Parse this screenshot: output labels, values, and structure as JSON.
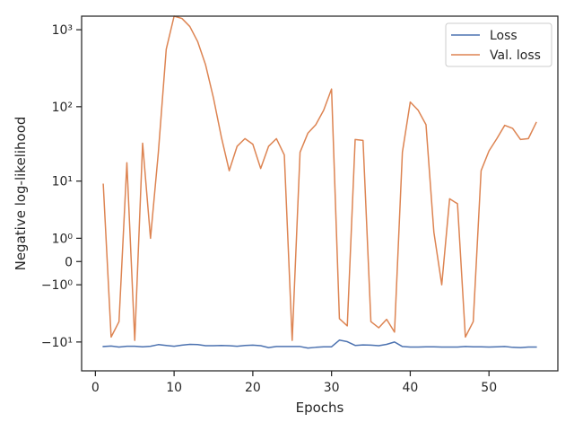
{
  "chart_data": {
    "type": "line",
    "title": "",
    "xlabel": "Epochs",
    "ylabel": "Negative log-likelihood",
    "yscale": "symlog",
    "xlim": [
      -1.75,
      58.75
    ],
    "ylim": [
      -25,
      1500
    ],
    "grid": false,
    "legend_position": "top-right",
    "x_ticks": [
      0,
      10,
      20,
      30,
      40,
      50
    ],
    "x_tick_labels": [
      "0",
      "10",
      "20",
      "30",
      "40",
      "50"
    ],
    "y_ticks": [
      -10,
      -1,
      0,
      1,
      10,
      100,
      1000
    ],
    "y_tick_labels": [
      "−10¹",
      "−10⁰",
      "0",
      "10⁰",
      "10¹",
      "10²",
      "10³"
    ],
    "series": [
      {
        "name": "Loss",
        "color": "#4c72b0",
        "x": [
          1,
          2,
          3,
          4,
          5,
          6,
          7,
          8,
          9,
          10,
          11,
          12,
          13,
          14,
          15,
          16,
          17,
          18,
          19,
          20,
          21,
          22,
          23,
          24,
          25,
          26,
          27,
          28,
          29,
          30,
          31,
          32,
          33,
          34,
          35,
          36,
          37,
          38,
          39,
          40,
          41,
          42,
          43,
          44,
          45,
          46,
          47,
          48,
          49,
          50,
          51,
          52,
          53,
          54,
          55,
          56
        ],
        "values": [
          -11.6,
          -11.4,
          -11.8,
          -11.5,
          -11.5,
          -11.7,
          -11.5,
          -10.9,
          -11.2,
          -11.5,
          -11.1,
          -10.8,
          -10.9,
          -11.3,
          -11.3,
          -11.2,
          -11.3,
          -11.5,
          -11.2,
          -11.1,
          -11.3,
          -12.0,
          -11.6,
          -11.6,
          -11.6,
          -11.6,
          -12.2,
          -11.9,
          -11.7,
          -11.7,
          -9.4,
          -9.9,
          -11.2,
          -11.0,
          -11.1,
          -11.3,
          -10.8,
          -10.0,
          -11.6,
          -11.8,
          -11.8,
          -11.7,
          -11.7,
          -11.8,
          -11.8,
          -11.8,
          -11.6,
          -11.7,
          -11.7,
          -11.8,
          -11.7,
          -11.6,
          -11.9,
          -12.0,
          -11.8,
          -11.8
        ]
      },
      {
        "name": "Val. loss",
        "color": "#dd8452",
        "x": [
          1,
          2,
          3,
          4,
          5,
          6,
          7,
          8,
          9,
          10,
          11,
          12,
          13,
          14,
          15,
          16,
          17,
          18,
          19,
          20,
          21,
          22,
          23,
          24,
          25,
          26,
          27,
          28,
          29,
          30,
          31,
          32,
          33,
          34,
          35,
          36,
          37,
          38,
          39,
          40,
          41,
          42,
          43,
          44,
          45,
          46,
          47,
          48,
          49,
          50,
          51,
          52,
          53,
          54,
          55,
          56
        ],
        "values": [
          9,
          -8.5,
          -5,
          18,
          -9.5,
          33,
          1,
          25,
          560,
          1500,
          1400,
          1100,
          700,
          350,
          130,
          40,
          14,
          30,
          38,
          32,
          15,
          30,
          38,
          23,
          -9.5,
          25,
          45,
          58,
          90,
          170,
          -4.5,
          -5.8,
          37,
          36,
          -5,
          -6.2,
          -4.6,
          -7.2,
          25,
          115,
          90,
          58,
          1.4,
          -1,
          5.5,
          4.6,
          -8.5,
          -5,
          14,
          26,
          38,
          57,
          52,
          37,
          38,
          62
        ]
      }
    ]
  }
}
